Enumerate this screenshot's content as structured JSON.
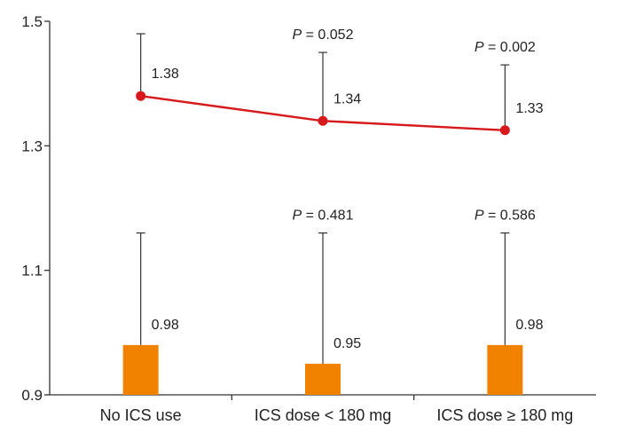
{
  "chart_data": {
    "type": "bar",
    "categories": [
      "No ICS use",
      "ICS dose < 180 mg",
      "ICS dose ≥ 180 mg"
    ],
    "ylim": [
      0.9,
      1.5
    ],
    "yticks": [
      0.9,
      1.1,
      1.3,
      1.5
    ],
    "ytick_labels": [
      "0.9",
      "1.1",
      "1.3",
      "1.5"
    ],
    "title": "",
    "xlabel": "",
    "ylabel": "",
    "grid": false,
    "series": [
      {
        "type": "bar",
        "values": [
          0.98,
          0.95,
          0.98
        ],
        "labels": [
          "0.98",
          "0.95",
          "0.98"
        ],
        "error_upper": [
          1.16,
          1.16,
          1.16
        ],
        "p_values": [
          "",
          "0.481",
          "0.586"
        ],
        "color": "#F08200"
      },
      {
        "type": "line",
        "values": [
          1.38,
          1.34,
          1.325
        ],
        "labels": [
          "1.38",
          "1.34",
          "1.33"
        ],
        "error_upper": [
          1.48,
          1.45,
          1.43
        ],
        "p_values": [
          "",
          "0.052",
          "0.002"
        ],
        "color": "#D7191C"
      }
    ],
    "p_prefix": "P",
    "p_separator": " = "
  }
}
